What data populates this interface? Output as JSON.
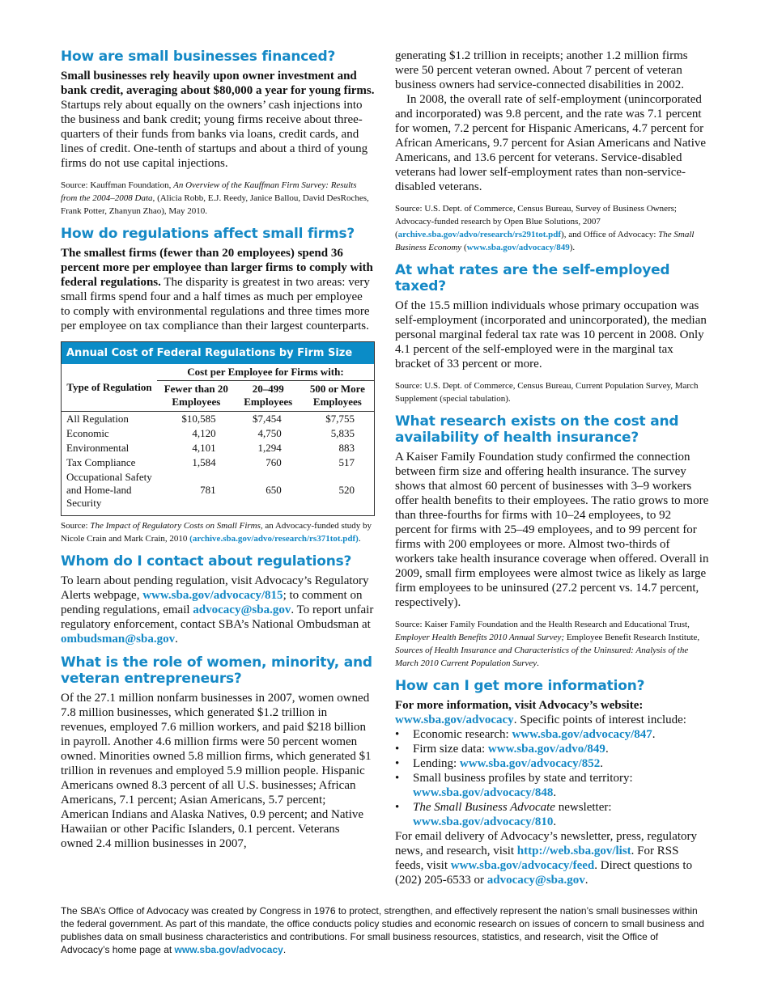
{
  "colors": {
    "accent": "#1589c6",
    "table_header": "#0b8cc7"
  },
  "left": [
    {
      "type": "h",
      "text": "How are small businesses financed?"
    },
    {
      "type": "p",
      "segs": [
        {
          "s": "b",
          "t": "Small businesses rely heavily upon owner investment and bank credit, averaging about $80,000 a year for young firms."
        },
        {
          "s": "",
          "t": " Startups rely about equally on the owners’ cash injections into the business and bank credit; young firms receive about three-quarters of their funds from banks via loans, credit cards, and lines of credit. One-tenth of startups and about a third of young firms do not use capital injections."
        }
      ]
    },
    {
      "type": "src",
      "segs": [
        {
          "s": "",
          "t": "Source: Kauffman Foundation, "
        },
        {
          "s": "i",
          "t": "An Overview of the Kauffman Firm Survey: Results from the 2004–2008 Data,"
        },
        {
          "s": "",
          "t": " (Alicia Robb, E.J. Reedy, Janice Ballou, David DesRoches, Frank Potter, Zhanyun Zhao), May 2010."
        }
      ]
    },
    {
      "type": "h",
      "text": "How do regulations affect small firms?"
    },
    {
      "type": "p",
      "segs": [
        {
          "s": "b",
          "t": "The smallest firms (fewer than 20 employees) spend 36 percent more per employee than larger firms to comply with federal regulations."
        },
        {
          "s": "",
          "t": " The disparity is greatest in two areas: very small firms spend four and a half times as much per employee to comply with environmental regulations and three times more per employee on tax compliance than their largest counterparts."
        }
      ]
    },
    {
      "type": "table"
    },
    {
      "type": "src",
      "segs": [
        {
          "s": "",
          "t": "Source: "
        },
        {
          "s": "i",
          "t": "The Impact of Regulatory Costs on Small Firms,"
        },
        {
          "s": "",
          "t": " an Advocacy-funded study by Nicole Crain and Mark Crain, 2010 "
        },
        {
          "s": "a",
          "t": "(archive.sba.gov/advo/research/rs371tot.pdf)"
        },
        {
          "s": "",
          "t": "."
        }
      ]
    },
    {
      "type": "h",
      "text": "Whom do I contact about regulations?"
    },
    {
      "type": "p",
      "segs": [
        {
          "s": "",
          "t": "To learn about pending regulation, visit Advocacy’s Regulatory Alerts webpage, "
        },
        {
          "s": "a",
          "t": "www.sba.gov/advocacy/815"
        },
        {
          "s": "",
          "t": "; to comment on pending regulations, email "
        },
        {
          "s": "a",
          "t": "advocacy@sba.gov"
        },
        {
          "s": "",
          "t": ". To report unfair regulatory enforcement, contact SBA’s National Ombudsman at "
        },
        {
          "s": "a",
          "t": "ombudsman@sba.gov"
        },
        {
          "s": "",
          "t": "."
        }
      ]
    },
    {
      "type": "h",
      "text": "What is the role of women, minority, and veteran entrepreneurs?"
    },
    {
      "type": "p",
      "segs": [
        {
          "s": "",
          "t": "Of the 27.1 million nonfarm businesses in 2007, women owned 7.8 million businesses, which generated $1.2 trillion in revenues, employed 7.6 million workers, and paid $218 billion in payroll. Another 4.6 million firms were 50 percent women owned. Minorities owned 5.8 million firms, which generated $1 trillion in revenues and employed 5.9 million people. Hispanic Americans owned 8.3 percent of all U.S. businesses; African Americans, 7.1 percent; Asian Americans, 5.7 percent; American Indians and Alaska Natives, 0.9 percent; and Native Hawaiian or other Pacific Islanders, 0.1 percent. Veterans owned 2.4 million businesses in 2007,"
        }
      ]
    }
  ],
  "table": {
    "title": "Annual Cost of Federal Regulations by Firm Size",
    "row_header": "Type of Regulation",
    "group_header": "Cost per Employee for Firms with:",
    "columns": [
      "Fewer than 20 Employees",
      "20–499 Employees",
      "500 or More Employees"
    ],
    "rows": [
      {
        "label": "All Regulation",
        "values": [
          "$10,585",
          "$7,454",
          "$7,755"
        ]
      },
      {
        "label": "Economic",
        "values": [
          "4,120",
          "4,750",
          "5,835"
        ]
      },
      {
        "label": "Environmental",
        "values": [
          "4,101",
          "1,294",
          "883"
        ]
      },
      {
        "label": "Tax Compliance",
        "values": [
          "1,584",
          "760",
          "517"
        ]
      },
      {
        "label": "Occupational Safety and Home-land Security",
        "values": [
          "781",
          "650",
          "520"
        ]
      }
    ]
  },
  "right": [
    {
      "type": "p",
      "segs": [
        {
          "s": "",
          "t": "generating $1.2 trillion in receipts; another 1.2 million firms were 50 percent veteran owned. About 7 percent of veteran business owners had service-connected disabilities in 2002."
        }
      ]
    },
    {
      "type": "pi",
      "segs": [
        {
          "s": "",
          "t": "In 2008, the overall rate of self-employment (unincorporated and incorporated) was 9.8 percent, and the rate was 7.1 percent for women, 7.2 percent for Hispanic Americans, 4.7 percent for African Americans, 9.7 percent for Asian Americans and Native Americans, and 13.6 percent for veterans. Service-disabled veterans had lower self-employment rates than non-service-disabled veterans."
        }
      ]
    },
    {
      "type": "src",
      "segs": [
        {
          "s": "",
          "t": "Source: U.S. Dept. of Commerce, Census Bureau, Survey of Business Owners; Advocacy-funded research by Open Blue Solutions, 2007 ("
        },
        {
          "s": "a",
          "t": "archive.sba.gov/advo/research/rs291tot.pdf"
        },
        {
          "s": "",
          "t": "), and Office of Advocacy: "
        },
        {
          "s": "i",
          "t": "The Small Business Economy"
        },
        {
          "s": "",
          "t": " ("
        },
        {
          "s": "a",
          "t": "www.sba.gov/advocacy/849"
        },
        {
          "s": "",
          "t": ")."
        }
      ]
    },
    {
      "type": "h",
      "text": "At what rates are the self-employed taxed?"
    },
    {
      "type": "p",
      "segs": [
        {
          "s": "",
          "t": "Of the 15.5 million individuals whose primary occupation was self-employment (incorporated and unincorporated), the median personal marginal federal tax rate was 10 percent in 2008.  Only 4.1 percent of the self-employed were in the marginal tax bracket of 33 percent or more."
        }
      ]
    },
    {
      "type": "src",
      "segs": [
        {
          "s": "",
          "t": "Source: U.S. Dept. of Commerce, Census Bureau, Current Population Survey, March Supplement (special tabulation)."
        }
      ]
    },
    {
      "type": "h",
      "text": "What research exists on the cost and availability of health insurance?"
    },
    {
      "type": "p",
      "segs": [
        {
          "s": "",
          "t": "A Kaiser Family Foundation study confirmed the connection between firm size and offering health insurance. The survey shows that almost 60 percent of businesses with 3–9 workers offer health benefits to their employees. The ratio grows to more than three-fourths for firms with 10–24 employees, to 92 percent for firms with 25–49 employees, and to 99 percent for firms with 200 employees or more. Almost two-thirds of workers take health insurance coverage when offered. Overall in 2009, small firm employees were almost twice as likely as large firm employees to be uninsured (27.2 percent vs. 14.7 percent, respectively)."
        }
      ]
    },
    {
      "type": "src",
      "segs": [
        {
          "s": "",
          "t": "Source: Kaiser Family Foundation and the Health Research and Educational Trust, "
        },
        {
          "s": "i",
          "t": "Employer Health Benefits 2010 Annual Survey;"
        },
        {
          "s": "",
          "t": " Employee Benefit Research Institute, "
        },
        {
          "s": "i",
          "t": "Sources of Health Insurance and Characteristics of the Uninsured: Analysis of the March 2010 Current Population Survey"
        },
        {
          "s": "",
          "t": "."
        }
      ]
    },
    {
      "type": "h",
      "text": "How can I get more information?"
    },
    {
      "type": "p0",
      "segs": [
        {
          "s": "b",
          "t": "For more information, visit Advocacy’s website: "
        },
        {
          "s": "a",
          "t": "www.sba.gov/advocacy"
        },
        {
          "s": "",
          "t": ". Specific points of interest include:"
        }
      ]
    },
    {
      "type": "list",
      "items": [
        [
          {
            "s": "",
            "t": "Economic research: "
          },
          {
            "s": "a",
            "t": "www.sba.gov/advocacy/847"
          },
          {
            "s": "",
            "t": "."
          }
        ],
        [
          {
            "s": "",
            "t": "Firm size data: "
          },
          {
            "s": "a",
            "t": "www.sba.gov/advo/849"
          },
          {
            "s": "",
            "t": "."
          }
        ],
        [
          {
            "s": "",
            "t": "Lending: "
          },
          {
            "s": "a",
            "t": "www.sba.gov/advocacy/852"
          },
          {
            "s": "",
            "t": "."
          }
        ],
        [
          {
            "s": "",
            "t": "Small business profiles by state and territory: "
          },
          {
            "s": "a",
            "t": "www.sba.gov/advocacy/848"
          },
          {
            "s": "",
            "t": "."
          }
        ],
        [
          {
            "s": "i",
            "t": "The Small Business Advocate"
          },
          {
            "s": "",
            "t": " newsletter: "
          },
          {
            "s": "a",
            "t": "www.sba.gov/advocacy/810"
          },
          {
            "s": "",
            "t": "."
          }
        ]
      ]
    },
    {
      "type": "p",
      "segs": [
        {
          "s": "",
          "t": "For email delivery of Advocacy’s newsletter, press, regulatory news, and research, visit "
        },
        {
          "s": "a",
          "t": "http://web.sba.gov/list"
        },
        {
          "s": "",
          "t": ". For RSS feeds, visit "
        },
        {
          "s": "a",
          "t": "www.sba.gov/advocacy/feed"
        },
        {
          "s": "",
          "t": ". Direct questions to (202) 205-6533 or "
        },
        {
          "s": "a",
          "t": "advocacy@sba.gov"
        },
        {
          "s": "",
          "t": "."
        }
      ]
    }
  ],
  "footer": [
    {
      "s": "",
      "t": "The SBA’s Office of Advocacy was created by Congress in 1976 to protect, strengthen, and effectively represent the nation’s small businesses within the federal government. As part of this mandate, the office conducts policy studies and economic research on issues of concern to small business and publishes data on small business characteristics and contributions. For small business resources, statistics, and research, visit the Office of Advocacy’s home page at "
    },
    {
      "s": "a",
      "t": "www.sba.gov/advocacy"
    },
    {
      "s": "",
      "t": "."
    }
  ]
}
